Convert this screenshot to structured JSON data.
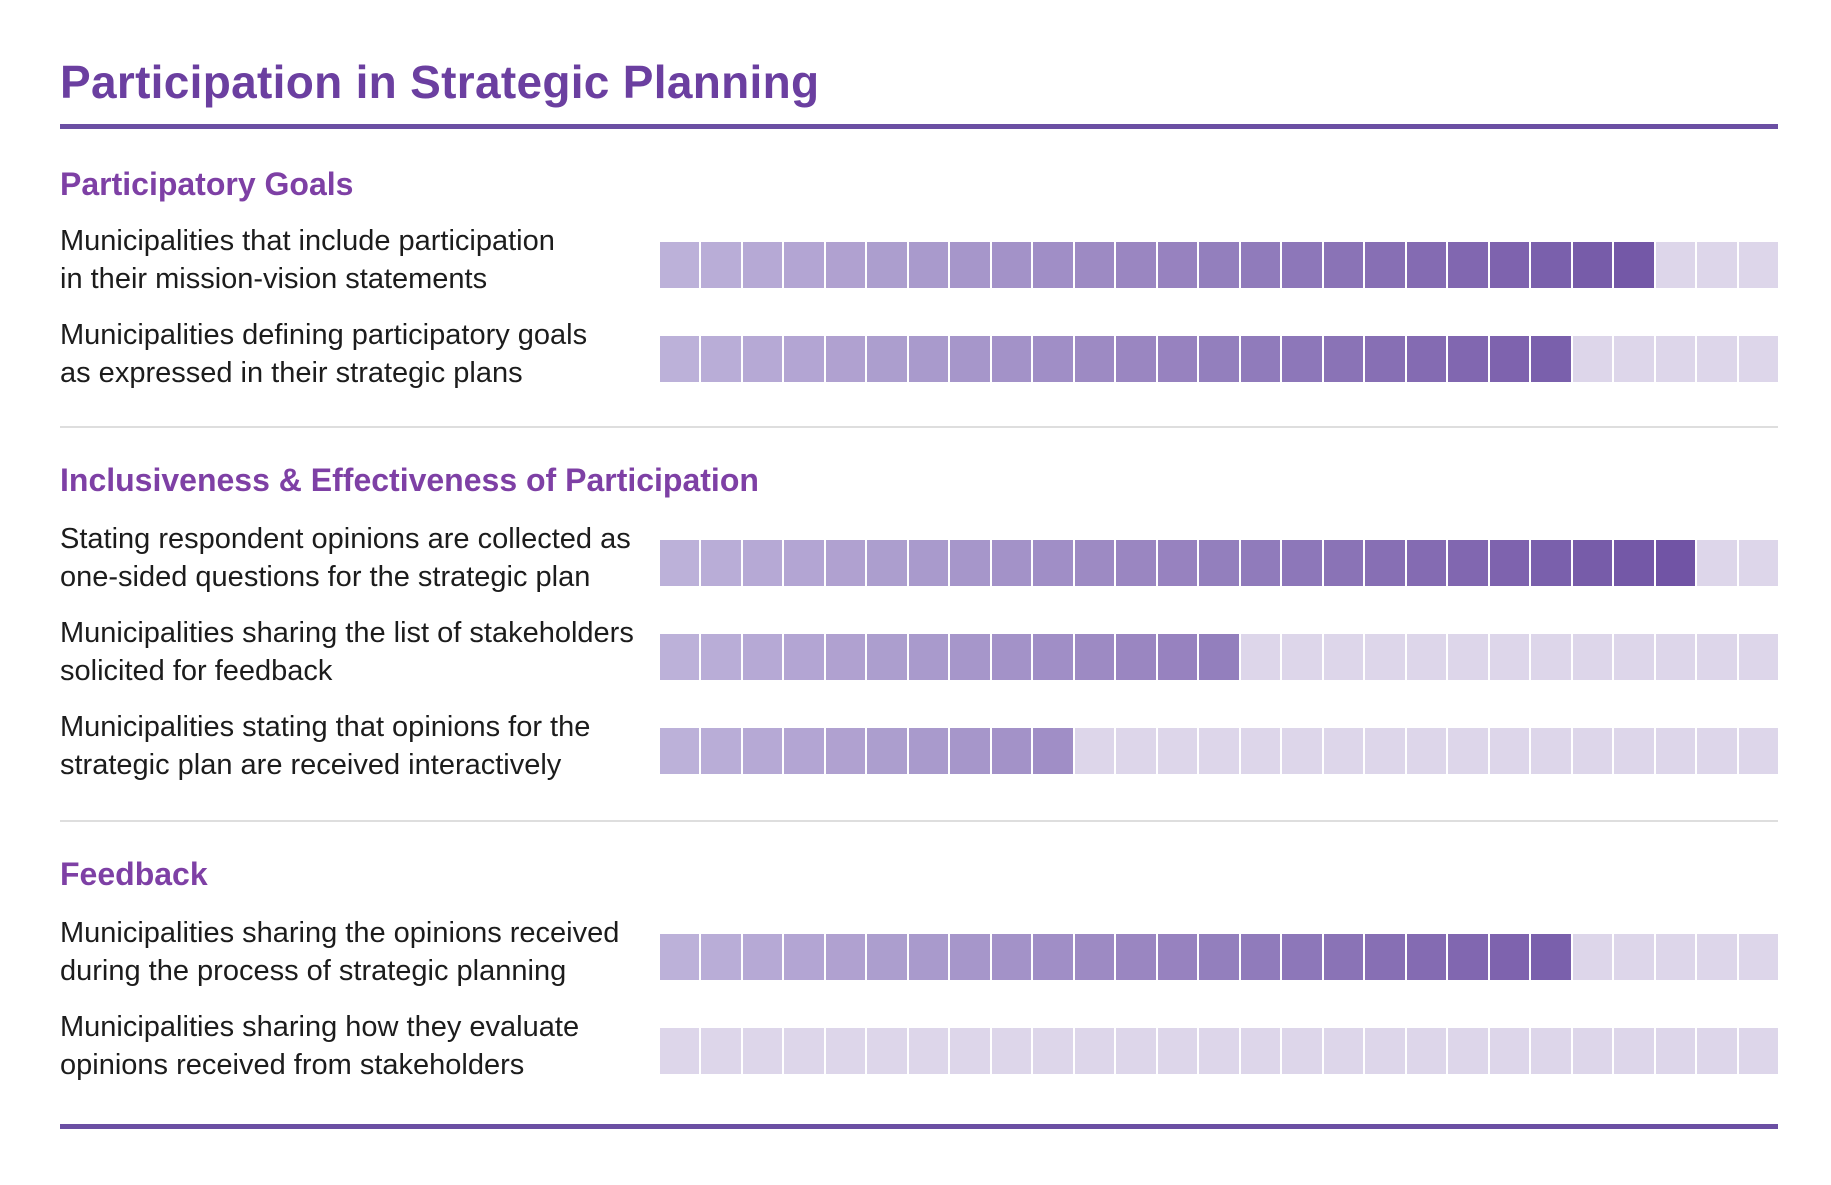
{
  "chart_data": {
    "type": "bar",
    "title": "Participation in Strategic Planning",
    "max_units": 27,
    "colors": {
      "filled_start": "#bcb1d9",
      "filled_end": "#6e50a3",
      "empty": "#ddd6ea",
      "title": "#6b3fa0",
      "section": "#7e40a5",
      "value": "#5e4596"
    },
    "sections": [
      {
        "title": "Participatory Goals",
        "items": [
          {
            "label": [
              "Municipalities that include participation",
              "in their mission-vision statements"
            ],
            "value": 24
          },
          {
            "label": [
              "Municipalities defining participatory goals",
              "as expressed in their strategic plans"
            ],
            "value": 22
          }
        ]
      },
      {
        "title": "Inclusiveness & Effectiveness of Participation",
        "items": [
          {
            "label": [
              "Stating respondent opinions are collected as",
              "one-sided questions for the strategic plan"
            ],
            "value": 25
          },
          {
            "label": [
              "Municipalities sharing the list of stakeholders",
              "solicited for feedback"
            ],
            "value": 14
          },
          {
            "label": [
              "Municipalities stating that opinions for the",
              "strategic plan are received interactively"
            ],
            "value": 10
          }
        ]
      },
      {
        "title": "Feedback",
        "items": [
          {
            "label": [
              "Municipalities sharing the opinions received",
              "during the process of strategic planning"
            ],
            "value": 22
          },
          {
            "label": [
              "Municipalities sharing how they evaluate",
              "opinions received from stakeholders"
            ],
            "value": 0
          }
        ]
      }
    ]
  }
}
